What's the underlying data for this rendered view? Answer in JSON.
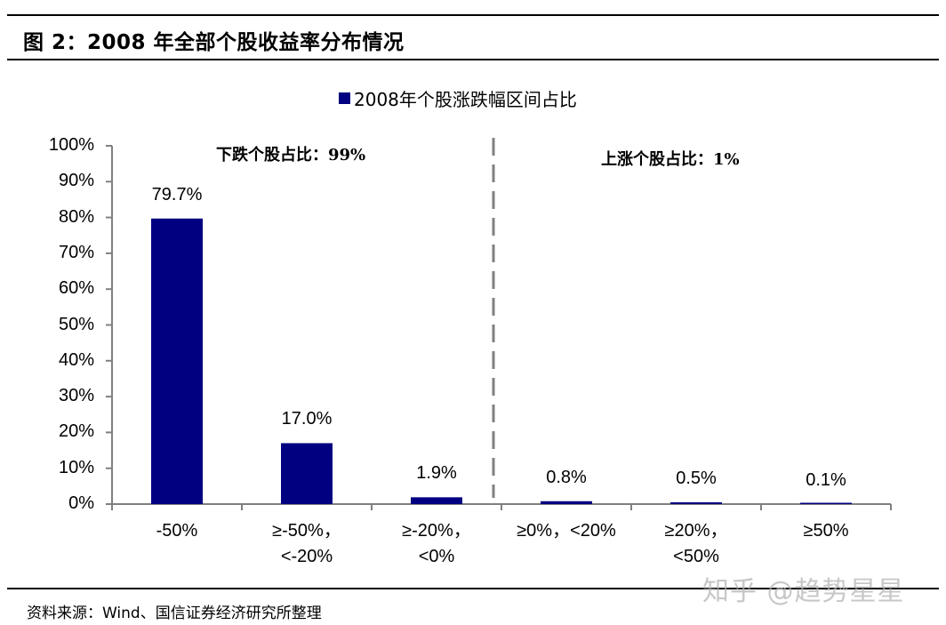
{
  "figure": {
    "title": "图  2：2008 年全部个股收益率分布情况",
    "source": "资料来源：Wind、国信证券经济研究所整理",
    "watermark": "知乎 @趋势星星"
  },
  "colors": {
    "bar": "#000080",
    "axis": "#808080",
    "divider": "#808080"
  },
  "annotations": {
    "down": "下跌个股占比：99%",
    "up": "上涨个股占比：1%"
  },
  "chart_data": {
    "type": "bar",
    "title": "",
    "legend": [
      "2008年个股涨跌幅区间占比"
    ],
    "legend_position": "top",
    "categories": [
      "-50%",
      "≥-50%，<-20%",
      "≥-20%，<0%",
      "≥0%，<20%",
      "≥20%，<50%",
      "≥50%"
    ],
    "category_lines": [
      [
        "-50%"
      ],
      [
        "≥-50%，",
        "<-20%"
      ],
      [
        "≥-20%，",
        "<0%"
      ],
      [
        "≥0%，<20%"
      ],
      [
        "≥20%，",
        "<50%"
      ],
      [
        "≥50%"
      ]
    ],
    "series": [
      {
        "name": "2008年个股涨跌幅区间占比",
        "values": [
          79.7,
          17.0,
          1.9,
          0.8,
          0.5,
          0.1
        ]
      }
    ],
    "value_labels": [
      "79.7%",
      "17.0%",
      "1.9%",
      "0.8%",
      "0.5%",
      "0.1%"
    ],
    "xlabel": "",
    "ylabel": "",
    "ylim": [
      0,
      100
    ],
    "yticks": [
      "0%",
      "10%",
      "20%",
      "30%",
      "40%",
      "50%",
      "60%",
      "70%",
      "80%",
      "90%",
      "100%"
    ],
    "grid": false,
    "annotations": [
      "下跌个股占比：99%",
      "上涨个股占比：1%"
    ]
  }
}
